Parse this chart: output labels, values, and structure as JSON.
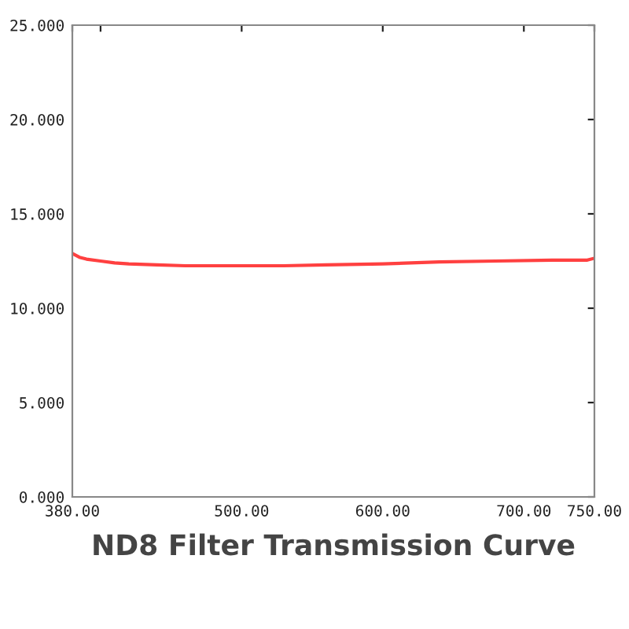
{
  "chart_data": {
    "type": "line",
    "title": "ND8 Filter Transmission Curve",
    "x": [
      380,
      385,
      390,
      400,
      410,
      420,
      440,
      460,
      500,
      530,
      560,
      600,
      640,
      680,
      720,
      745,
      750
    ],
    "series": [
      {
        "color": "#ff4040",
        "values": [
          12.9,
          12.7,
          12.6,
          12.5,
          12.4,
          12.35,
          12.3,
          12.25,
          12.25,
          12.25,
          12.3,
          12.35,
          12.45,
          12.5,
          12.55,
          12.55,
          12.65
        ]
      }
    ],
    "xlim": [
      380,
      750
    ],
    "xticks": [
      {
        "value": 380,
        "label": "380.00"
      },
      {
        "value": 400,
        "label": null
      },
      {
        "value": 500,
        "label": "500.00"
      },
      {
        "value": 600,
        "label": "600.00"
      },
      {
        "value": 700,
        "label": "700.00"
      },
      {
        "value": 750,
        "label": "750.00"
      }
    ],
    "ylim": [
      0,
      25
    ],
    "yticks": [
      {
        "value": 0,
        "label": "0.000"
      },
      {
        "value": 5,
        "label": "5.000"
      },
      {
        "value": 10,
        "label": "10.000"
      },
      {
        "value": 15,
        "label": "15.000"
      },
      {
        "value": 20,
        "label": "20.000"
      },
      {
        "value": 25,
        "label": "25.000"
      }
    ],
    "grid": false,
    "legend": false
  }
}
